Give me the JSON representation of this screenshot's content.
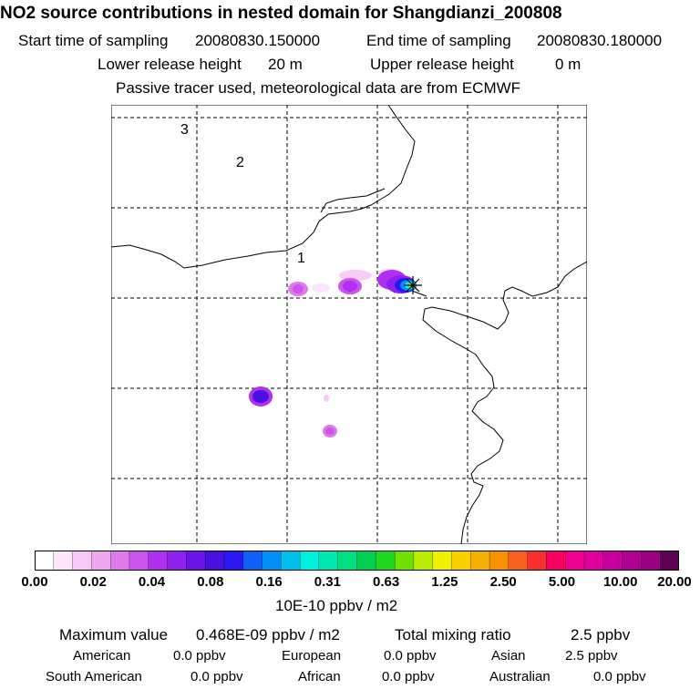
{
  "header": {
    "title": "NO2 source contributions in nested domain for Shangdianzi_200808",
    "start_label": "Start time of sampling",
    "start_value": "20080830.150000",
    "end_label": "End time of sampling",
    "end_value": "20080830.180000",
    "lower_label": "Lower release height",
    "lower_value": "20 m",
    "upper_label": "Upper release height",
    "upper_value": "0 m",
    "note": "Passive tracer used, meteorological data are from ECMWF"
  },
  "map": {
    "domain_labels": [
      "1",
      "2",
      "3"
    ],
    "receptor_marker": "star-marker"
  },
  "colorbar": {
    "ticks": [
      "0.00",
      "0.02",
      "0.04",
      "0.08",
      "0.16",
      "0.31",
      "0.63",
      "1.25",
      "2.50",
      "5.00",
      "10.00",
      "20.00"
    ],
    "colors": [
      "#ffffff",
      "#fbe6fb",
      "#f6c8f6",
      "#f0a8f0",
      "#e07ae8",
      "#cc55ee",
      "#b030f0",
      "#9020f0",
      "#6a14e8",
      "#4a10e0",
      "#2a18f0",
      "#1060f8",
      "#0090f8",
      "#00c0f0",
      "#00f0e0",
      "#00e8b0",
      "#00e080",
      "#00d050",
      "#20d820",
      "#70e000",
      "#b8ec00",
      "#f0f000",
      "#f8d000",
      "#f8b000",
      "#f89000",
      "#f86020",
      "#f83030",
      "#f80060",
      "#f00090",
      "#e000a0",
      "#c800a0",
      "#b00090",
      "#980080",
      "#600050"
    ],
    "unit": "10E-10 ppbv / m2"
  },
  "stats": {
    "max_label": "Maximum value",
    "max_value": "0.468E-09 ppbv / m2",
    "total_label": "Total mixing ratio",
    "total_value": "2.5 ppbv",
    "regions": [
      {
        "name": "American",
        "value": "0.0 ppbv"
      },
      {
        "name": "European",
        "value": "0.0 ppbv"
      },
      {
        "name": "Asian",
        "value": "2.5 ppbv"
      },
      {
        "name": "South American",
        "value": "0.0 ppbv"
      },
      {
        "name": "African",
        "value": "0.0 ppbv"
      },
      {
        "name": "Australian",
        "value": "0.0 ppbv"
      }
    ]
  }
}
